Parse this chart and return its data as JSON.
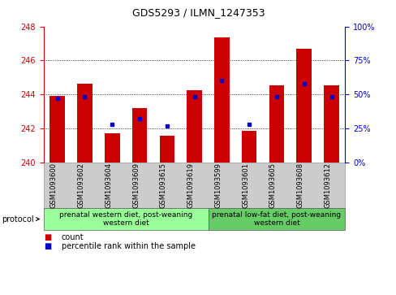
{
  "title": "GDS5293 / ILMN_1247353",
  "samples": [
    "GSM1093600",
    "GSM1093602",
    "GSM1093604",
    "GSM1093609",
    "GSM1093615",
    "GSM1093619",
    "GSM1093599",
    "GSM1093601",
    "GSM1093605",
    "GSM1093608",
    "GSM1093612"
  ],
  "count_values": [
    243.9,
    244.65,
    241.7,
    243.2,
    241.55,
    244.25,
    247.35,
    241.85,
    244.55,
    246.7,
    244.55
  ],
  "percentile_values": [
    47,
    48,
    28,
    32,
    27,
    48,
    60,
    28,
    48,
    58,
    48
  ],
  "ymin": 240,
  "ymax": 248,
  "yticks": [
    240,
    242,
    244,
    246,
    248
  ],
  "y2min": 0,
  "y2max": 100,
  "y2ticks": [
    0,
    25,
    50,
    75,
    100
  ],
  "bar_color": "#cc0000",
  "dot_color": "#0000cc",
  "bar_width": 0.55,
  "group1_count": 6,
  "group2_count": 5,
  "groups": [
    {
      "label": "prenatal western diet, post-weaning\nwestern diet",
      "color": "#99ff99"
    },
    {
      "label": "prenatal low-fat diet, post-weaning\nwestern diet",
      "color": "#66cc66"
    }
  ],
  "protocol_label": "protocol",
  "legend_count_label": "count",
  "legend_percentile_label": "percentile rank within the sample",
  "grid_color": "#000000",
  "axis_color_left": "#cc0000",
  "axis_color_right": "#0000cc",
  "bg_color": "#ffffff",
  "plot_bg_color": "#ffffff",
  "tick_area_color": "#cccccc",
  "title_fontsize": 9,
  "tick_fontsize": 6,
  "label_fontsize": 6.5
}
